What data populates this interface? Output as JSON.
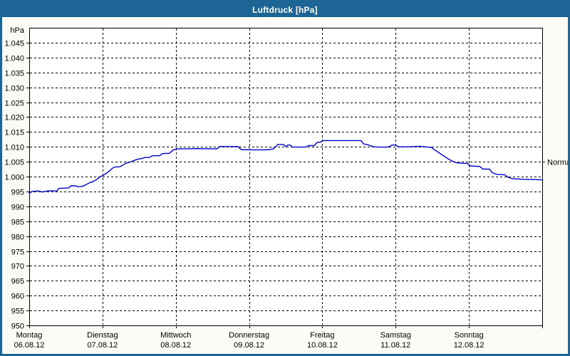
{
  "window": {
    "title": "Luftdruck [hPa]"
  },
  "colors": {
    "frame": "#1d6594",
    "titlebar_bg": "#1d6594",
    "title_text": "#ffffff",
    "content_bg": "#fcfcf7",
    "plot_bg": "#ffffff",
    "grid": "#000000",
    "axis_text": "#000000",
    "line": "#0000cc"
  },
  "chart_data": {
    "type": "line",
    "title": "Luftdruck [hPa]",
    "ylabel": "hPa",
    "ylim": [
      950,
      1050
    ],
    "xlim_days": [
      0,
      7
    ],
    "grid": "dashed",
    "legend": "none",
    "yticks": [
      {
        "v": 1045,
        "label": "1.045"
      },
      {
        "v": 1040,
        "label": "1.040"
      },
      {
        "v": 1035,
        "label": "1.035"
      },
      {
        "v": 1030,
        "label": "1.030"
      },
      {
        "v": 1025,
        "label": "1.025"
      },
      {
        "v": 1020,
        "label": "1.020"
      },
      {
        "v": 1015,
        "label": "1.015"
      },
      {
        "v": 1010,
        "label": "1.010"
      },
      {
        "v": 1005,
        "label": "1.005"
      },
      {
        "v": 1000,
        "label": "1.000"
      },
      {
        "v": 995,
        "label": "995"
      },
      {
        "v": 990,
        "label": "990"
      },
      {
        "v": 985,
        "label": "985"
      },
      {
        "v": 980,
        "label": "980"
      },
      {
        "v": 975,
        "label": "975"
      },
      {
        "v": 970,
        "label": "970"
      },
      {
        "v": 965,
        "label": "965"
      },
      {
        "v": 960,
        "label": "960"
      },
      {
        "v": 955,
        "label": "955"
      },
      {
        "v": 950,
        "label": "950"
      }
    ],
    "categories": [
      {
        "day": "Montag",
        "date": "06.08.12"
      },
      {
        "day": "Dienstag",
        "date": "07.08.12"
      },
      {
        "day": "Mittwoch",
        "date": "08.08.12"
      },
      {
        "day": "Donnerstag",
        "date": "09.08.12"
      },
      {
        "day": "Freitag",
        "date": "10.08.12"
      },
      {
        "day": "Samstag",
        "date": "11.08.12"
      },
      {
        "day": "Sonntag",
        "date": "12.08.12"
      }
    ],
    "normal_marker": {
      "label": "Normal",
      "value": 1005
    },
    "series": [
      {
        "name": "Luftdruck",
        "color": "#0000cc",
        "points": [
          [
            0.0,
            994.4
          ],
          [
            0.04,
            995.0
          ],
          [
            0.12,
            995.2
          ],
          [
            0.18,
            994.8
          ],
          [
            0.25,
            995.2
          ],
          [
            0.38,
            995.2
          ],
          [
            0.4,
            996.0
          ],
          [
            0.54,
            996.2
          ],
          [
            0.57,
            996.9
          ],
          [
            0.63,
            996.9
          ],
          [
            0.66,
            996.6
          ],
          [
            0.72,
            996.7
          ],
          [
            0.77,
            997.2
          ],
          [
            0.82,
            997.9
          ],
          [
            0.87,
            998.3
          ],
          [
            0.92,
            999.0
          ],
          [
            0.96,
            999.8
          ],
          [
            1.01,
            1000.4
          ],
          [
            1.06,
            1001.2
          ],
          [
            1.1,
            1002.0
          ],
          [
            1.14,
            1002.9
          ],
          [
            1.17,
            1003.2
          ],
          [
            1.24,
            1003.3
          ],
          [
            1.28,
            1003.9
          ],
          [
            1.32,
            1004.5
          ],
          [
            1.37,
            1004.8
          ],
          [
            1.43,
            1005.4
          ],
          [
            1.49,
            1005.9
          ],
          [
            1.54,
            1006.1
          ],
          [
            1.58,
            1006.4
          ],
          [
            1.64,
            1006.4
          ],
          [
            1.68,
            1007.0
          ],
          [
            1.78,
            1007.0
          ],
          [
            1.81,
            1007.6
          ],
          [
            1.85,
            1007.8
          ],
          [
            1.91,
            1007.8
          ],
          [
            1.94,
            1008.4
          ],
          [
            1.97,
            1009.0
          ],
          [
            2.02,
            1009.3
          ],
          [
            2.3,
            1009.4
          ],
          [
            2.56,
            1009.3
          ],
          [
            2.6,
            1010.1
          ],
          [
            2.85,
            1010.1
          ],
          [
            2.89,
            1009.1
          ],
          [
            3.0,
            1009.0
          ],
          [
            3.25,
            1009.0
          ],
          [
            3.33,
            1009.3
          ],
          [
            3.36,
            1009.9
          ],
          [
            3.39,
            1010.8
          ],
          [
            3.47,
            1010.8
          ],
          [
            3.5,
            1010.1
          ],
          [
            3.53,
            1010.6
          ],
          [
            3.56,
            1010.6
          ],
          [
            3.59,
            1009.9
          ],
          [
            3.77,
            1009.9
          ],
          [
            3.81,
            1010.4
          ],
          [
            3.89,
            1010.4
          ],
          [
            3.93,
            1011.5
          ],
          [
            3.98,
            1011.6
          ],
          [
            4.0,
            1012.1
          ],
          [
            4.53,
            1012.1
          ],
          [
            4.56,
            1011.0
          ],
          [
            4.62,
            1010.7
          ],
          [
            4.66,
            1010.3
          ],
          [
            4.7,
            1010.0
          ],
          [
            4.78,
            1009.9
          ],
          [
            4.9,
            1009.9
          ],
          [
            4.95,
            1010.6
          ],
          [
            5.0,
            1010.6
          ],
          [
            5.04,
            1010.0
          ],
          [
            5.2,
            1010.0
          ],
          [
            5.33,
            1010.2
          ],
          [
            5.44,
            1009.9
          ],
          [
            5.49,
            1009.8
          ],
          [
            5.53,
            1009.0
          ],
          [
            5.58,
            1008.2
          ],
          [
            5.62,
            1007.5
          ],
          [
            5.67,
            1006.7
          ],
          [
            5.72,
            1005.9
          ],
          [
            5.78,
            1005.1
          ],
          [
            5.84,
            1004.6
          ],
          [
            5.98,
            1004.4
          ],
          [
            6.02,
            1003.6
          ],
          [
            6.15,
            1003.4
          ],
          [
            6.19,
            1002.5
          ],
          [
            6.28,
            1002.5
          ],
          [
            6.32,
            1001.3
          ],
          [
            6.39,
            1000.7
          ],
          [
            6.49,
            1000.6
          ],
          [
            6.53,
            999.8
          ],
          [
            6.59,
            999.3
          ],
          [
            6.74,
            999.1
          ],
          [
            6.9,
            999.0
          ],
          [
            7.0,
            998.9
          ]
        ]
      }
    ]
  }
}
